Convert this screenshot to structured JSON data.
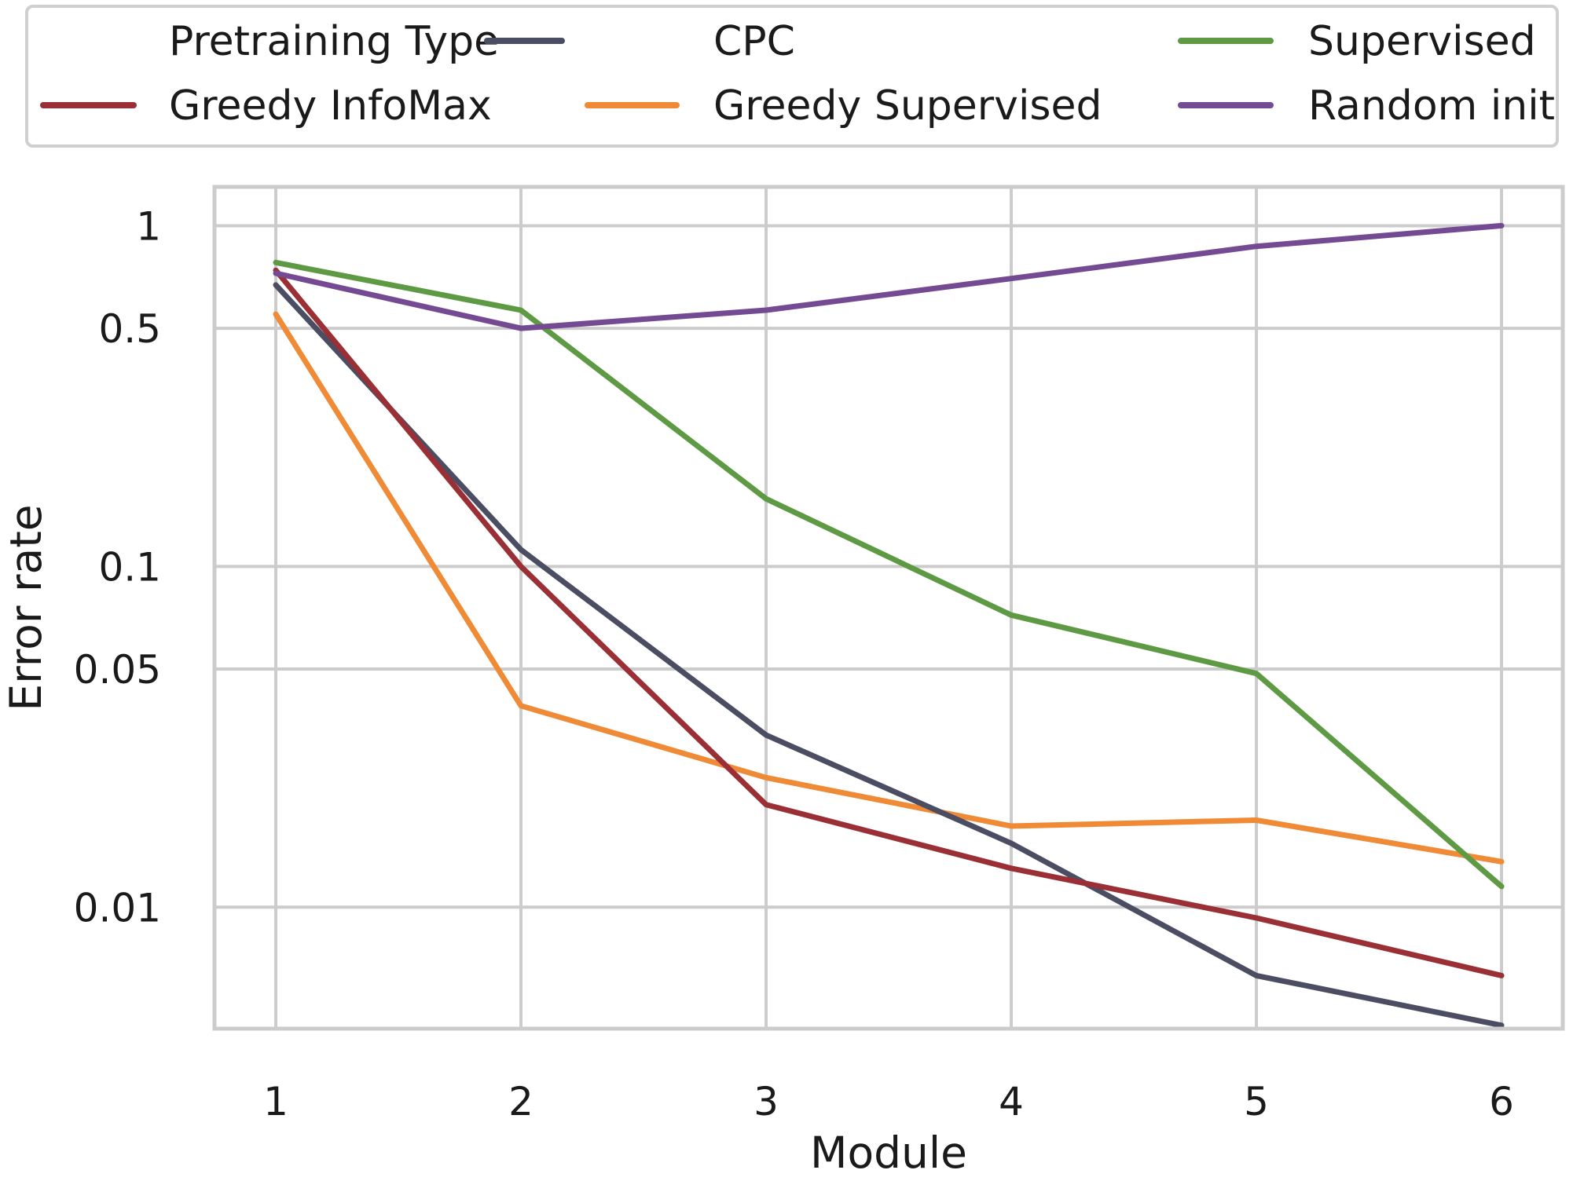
{
  "chart_data": {
    "type": "line",
    "title": "",
    "xlabel": "Module",
    "ylabel": "Error rate",
    "yscale": "log",
    "x": [
      1,
      2,
      3,
      4,
      5,
      6
    ],
    "xticks": [
      "1",
      "2",
      "3",
      "4",
      "5",
      "6"
    ],
    "yticks": [
      {
        "value": 1,
        "label": "1"
      },
      {
        "value": 0.5,
        "label": "0.5"
      },
      {
        "value": 0.1,
        "label": "0.1"
      },
      {
        "value": 0.05,
        "label": "0.05"
      },
      {
        "value": 0.01,
        "label": "0.01"
      }
    ],
    "xlim": [
      0.75,
      6.25
    ],
    "ylim": [
      0.0044,
      1.3
    ],
    "grid": true,
    "legend": {
      "title": "Pretraining Type",
      "placement": "top, outside plot"
    },
    "series": [
      {
        "name": "Greedy InfoMax",
        "color": "#9a2f36",
        "values": [
          0.74,
          0.1,
          0.02,
          0.013,
          0.0093,
          0.0063
        ]
      },
      {
        "name": "CPC",
        "color": "#4b4d63",
        "values": [
          0.67,
          0.112,
          0.032,
          0.0154,
          0.0063,
          0.0045
        ]
      },
      {
        "name": "Greedy Supervised",
        "color": "#ef8a36",
        "values": [
          0.55,
          0.039,
          0.024,
          0.0173,
          0.018,
          0.0136
        ]
      },
      {
        "name": "Supervised",
        "color": "#5e9a44",
        "values": [
          0.78,
          0.565,
          0.158,
          0.072,
          0.0485,
          0.0115
        ]
      },
      {
        "name": "Random init",
        "color": "#744b93",
        "values": [
          0.725,
          0.5,
          0.565,
          0.7,
          0.87,
          1.0
        ]
      }
    ]
  }
}
